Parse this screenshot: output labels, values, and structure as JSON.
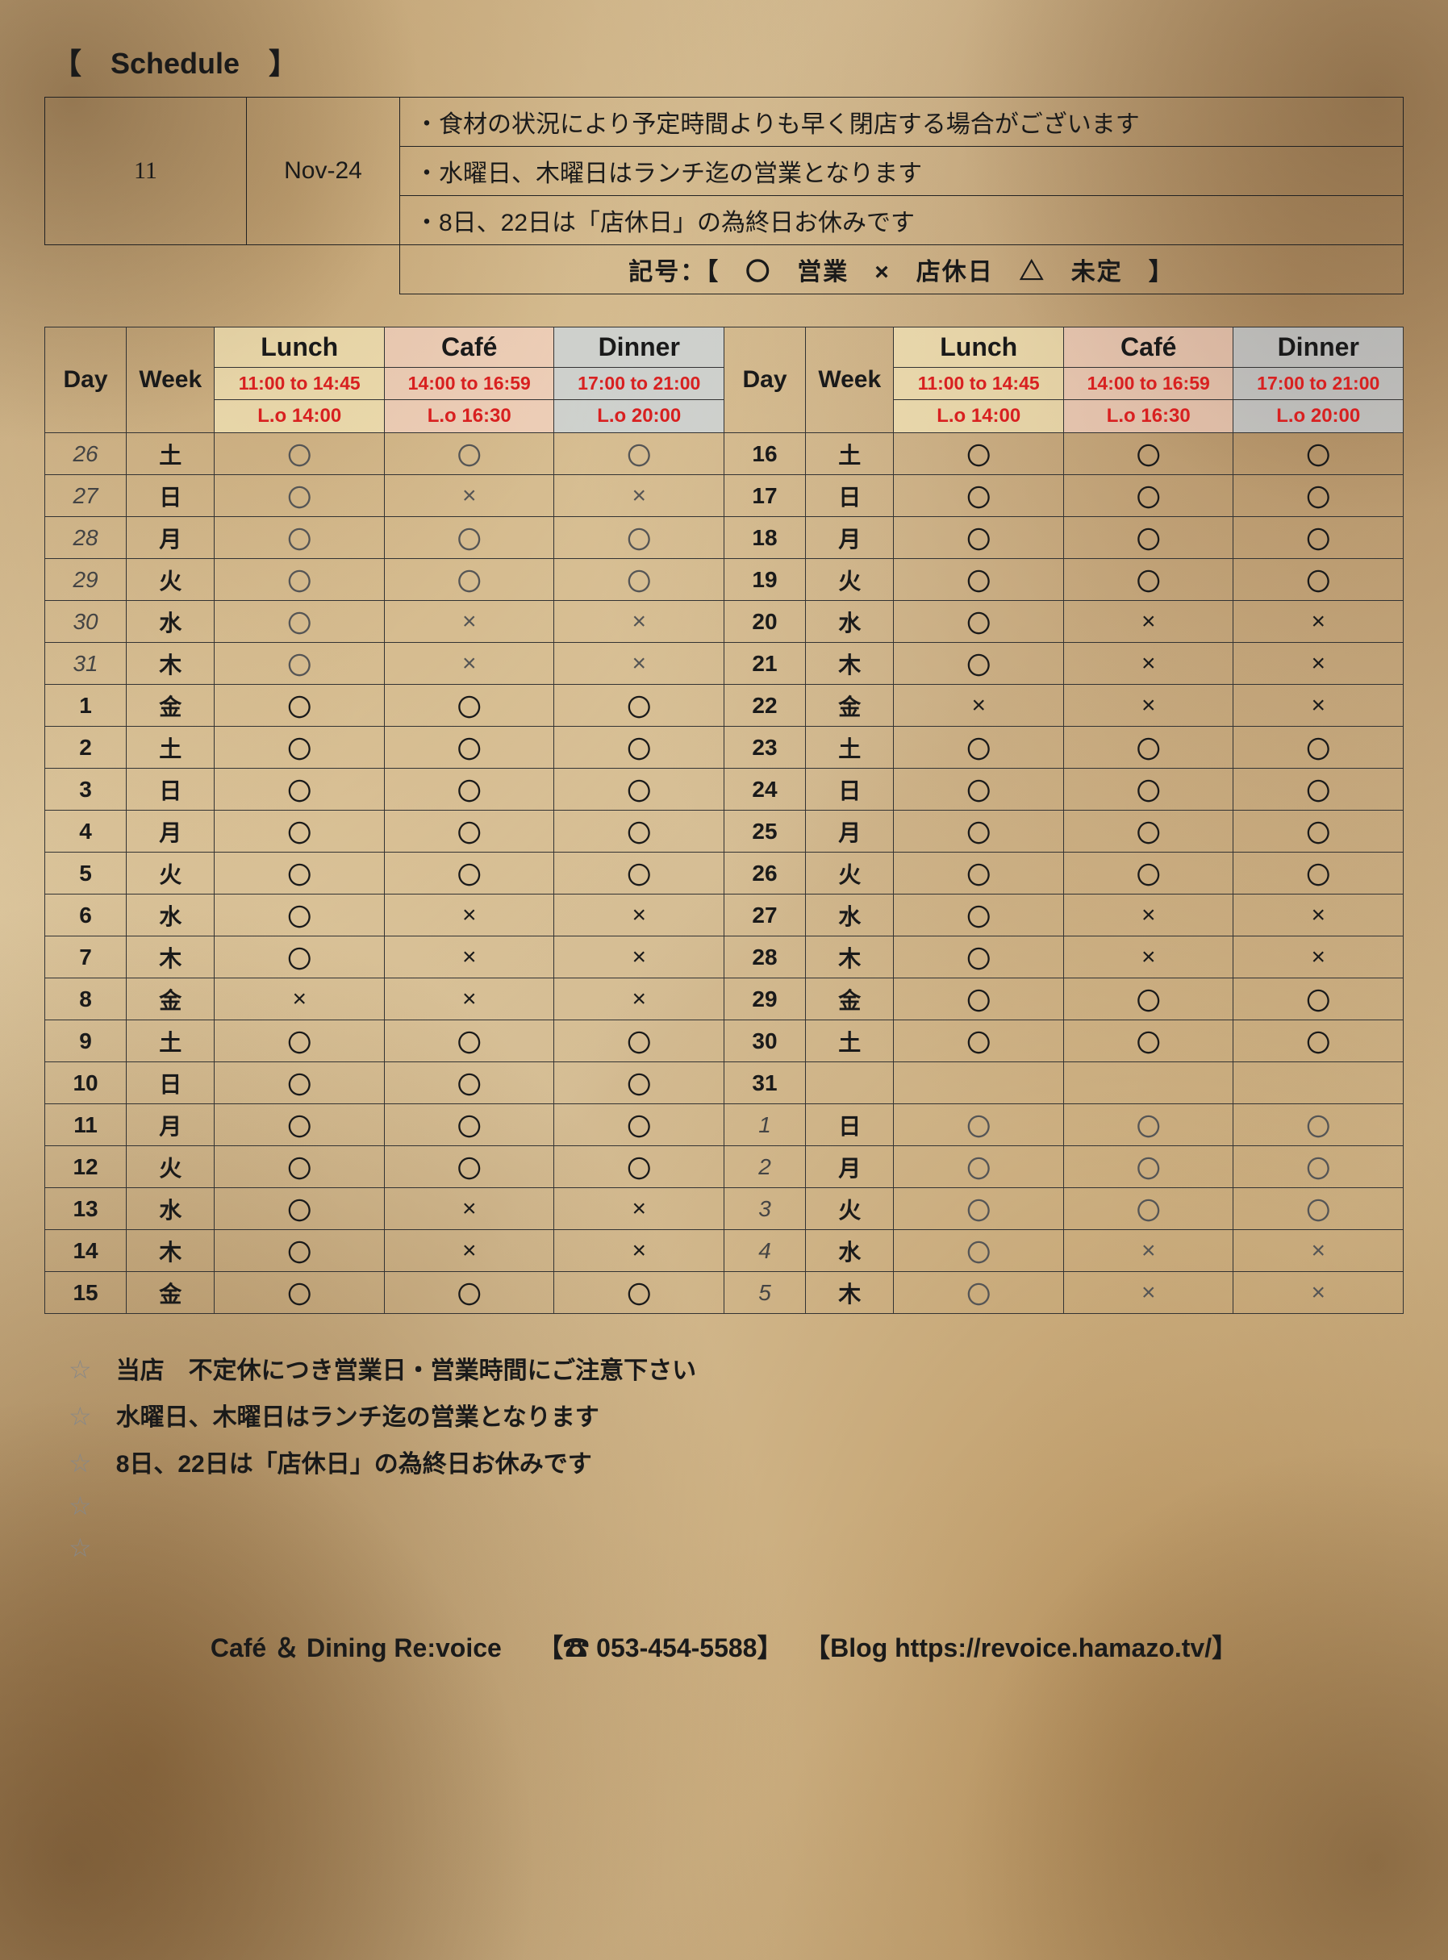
{
  "title": "【　Schedule　】",
  "info": {
    "month_num": "11",
    "month_label": "Nov-24",
    "lines": [
      "・食材の状況により予定時間よりも早く閉店する場合がございます",
      "・水曜日、木曜日はランチ迄の営業となります",
      "・8日、22日は「店休日」の為終日お休みです"
    ],
    "legend": "記号：【　〇　営業　×　店休日　△　未定　】"
  },
  "headers": {
    "day": "Day",
    "week": "Week",
    "meals": [
      "Lunch",
      "Café",
      "Dinner"
    ],
    "times": [
      "11:00 to 14:45",
      "14:00 to 16:59",
      "17:00 to 21:00"
    ],
    "lo": [
      "L.o 14:00",
      "L.o 16:30",
      "L.o 20:00"
    ]
  },
  "colors": {
    "lunch_bg": "#fff5c8",
    "cafe_bg": "#ffdcd7",
    "dinner_bg": "#c8e1ff",
    "time_text": "#d82020"
  },
  "symbols": {
    "open": "〇",
    "closed": "×",
    "tbd": "△"
  },
  "schedule_left": [
    {
      "day": "26",
      "week": "土",
      "lunch": "〇",
      "cafe": "〇",
      "dinner": "〇",
      "faded": true
    },
    {
      "day": "27",
      "week": "日",
      "lunch": "〇",
      "cafe": "×",
      "dinner": "×",
      "faded": true
    },
    {
      "day": "28",
      "week": "月",
      "lunch": "〇",
      "cafe": "〇",
      "dinner": "〇",
      "faded": true
    },
    {
      "day": "29",
      "week": "火",
      "lunch": "〇",
      "cafe": "〇",
      "dinner": "〇",
      "faded": true
    },
    {
      "day": "30",
      "week": "水",
      "lunch": "〇",
      "cafe": "×",
      "dinner": "×",
      "faded": true
    },
    {
      "day": "31",
      "week": "木",
      "lunch": "〇",
      "cafe": "×",
      "dinner": "×",
      "faded": true
    },
    {
      "day": "1",
      "week": "金",
      "lunch": "〇",
      "cafe": "〇",
      "dinner": "〇",
      "faded": false
    },
    {
      "day": "2",
      "week": "土",
      "lunch": "〇",
      "cafe": "〇",
      "dinner": "〇",
      "faded": false
    },
    {
      "day": "3",
      "week": "日",
      "lunch": "〇",
      "cafe": "〇",
      "dinner": "〇",
      "faded": false
    },
    {
      "day": "4",
      "week": "月",
      "lunch": "〇",
      "cafe": "〇",
      "dinner": "〇",
      "faded": false
    },
    {
      "day": "5",
      "week": "火",
      "lunch": "〇",
      "cafe": "〇",
      "dinner": "〇",
      "faded": false
    },
    {
      "day": "6",
      "week": "水",
      "lunch": "〇",
      "cafe": "×",
      "dinner": "×",
      "faded": false
    },
    {
      "day": "7",
      "week": "木",
      "lunch": "〇",
      "cafe": "×",
      "dinner": "×",
      "faded": false
    },
    {
      "day": "8",
      "week": "金",
      "lunch": "×",
      "cafe": "×",
      "dinner": "×",
      "faded": false
    },
    {
      "day": "9",
      "week": "土",
      "lunch": "〇",
      "cafe": "〇",
      "dinner": "〇",
      "faded": false
    },
    {
      "day": "10",
      "week": "日",
      "lunch": "〇",
      "cafe": "〇",
      "dinner": "〇",
      "faded": false
    },
    {
      "day": "11",
      "week": "月",
      "lunch": "〇",
      "cafe": "〇",
      "dinner": "〇",
      "faded": false
    },
    {
      "day": "12",
      "week": "火",
      "lunch": "〇",
      "cafe": "〇",
      "dinner": "〇",
      "faded": false
    },
    {
      "day": "13",
      "week": "水",
      "lunch": "〇",
      "cafe": "×",
      "dinner": "×",
      "faded": false
    },
    {
      "day": "14",
      "week": "木",
      "lunch": "〇",
      "cafe": "×",
      "dinner": "×",
      "faded": false
    },
    {
      "day": "15",
      "week": "金",
      "lunch": "〇",
      "cafe": "〇",
      "dinner": "〇",
      "faded": false
    }
  ],
  "schedule_right": [
    {
      "day": "16",
      "week": "土",
      "lunch": "〇",
      "cafe": "〇",
      "dinner": "〇",
      "faded": false
    },
    {
      "day": "17",
      "week": "日",
      "lunch": "〇",
      "cafe": "〇",
      "dinner": "〇",
      "faded": false
    },
    {
      "day": "18",
      "week": "月",
      "lunch": "〇",
      "cafe": "〇",
      "dinner": "〇",
      "faded": false
    },
    {
      "day": "19",
      "week": "火",
      "lunch": "〇",
      "cafe": "〇",
      "dinner": "〇",
      "faded": false
    },
    {
      "day": "20",
      "week": "水",
      "lunch": "〇",
      "cafe": "×",
      "dinner": "×",
      "faded": false
    },
    {
      "day": "21",
      "week": "木",
      "lunch": "〇",
      "cafe": "×",
      "dinner": "×",
      "faded": false
    },
    {
      "day": "22",
      "week": "金",
      "lunch": "×",
      "cafe": "×",
      "dinner": "×",
      "faded": false
    },
    {
      "day": "23",
      "week": "土",
      "lunch": "〇",
      "cafe": "〇",
      "dinner": "〇",
      "faded": false
    },
    {
      "day": "24",
      "week": "日",
      "lunch": "〇",
      "cafe": "〇",
      "dinner": "〇",
      "faded": false
    },
    {
      "day": "25",
      "week": "月",
      "lunch": "〇",
      "cafe": "〇",
      "dinner": "〇",
      "faded": false
    },
    {
      "day": "26",
      "week": "火",
      "lunch": "〇",
      "cafe": "〇",
      "dinner": "〇",
      "faded": false
    },
    {
      "day": "27",
      "week": "水",
      "lunch": "〇",
      "cafe": "×",
      "dinner": "×",
      "faded": false
    },
    {
      "day": "28",
      "week": "木",
      "lunch": "〇",
      "cafe": "×",
      "dinner": "×",
      "faded": false
    },
    {
      "day": "29",
      "week": "金",
      "lunch": "〇",
      "cafe": "〇",
      "dinner": "〇",
      "faded": false
    },
    {
      "day": "30",
      "week": "土",
      "lunch": "〇",
      "cafe": "〇",
      "dinner": "〇",
      "faded": false
    },
    {
      "day": "31",
      "week": "",
      "lunch": "",
      "cafe": "",
      "dinner": "",
      "faded": false
    },
    {
      "day": "1",
      "week": "日",
      "lunch": "〇",
      "cafe": "〇",
      "dinner": "〇",
      "faded": true
    },
    {
      "day": "2",
      "week": "月",
      "lunch": "〇",
      "cafe": "〇",
      "dinner": "〇",
      "faded": true
    },
    {
      "day": "3",
      "week": "火",
      "lunch": "〇",
      "cafe": "〇",
      "dinner": "〇",
      "faded": true
    },
    {
      "day": "4",
      "week": "水",
      "lunch": "〇",
      "cafe": "×",
      "dinner": "×",
      "faded": true
    },
    {
      "day": "5",
      "week": "木",
      "lunch": "〇",
      "cafe": "×",
      "dinner": "×",
      "faded": true
    }
  ],
  "notes": [
    "当店　不定休につき営業日・営業時間にご注意下さい",
    "水曜日、木曜日はランチ迄の営業となります",
    "8日、22日は「店休日」の為終日お休みです",
    "",
    ""
  ],
  "star": "☆",
  "footer": {
    "name": "Café ＆ Dining Re:voice",
    "phone": "【☎ 053-454-5588】",
    "blog": "【Blog https://revoice.hamazo.tv/】"
  }
}
